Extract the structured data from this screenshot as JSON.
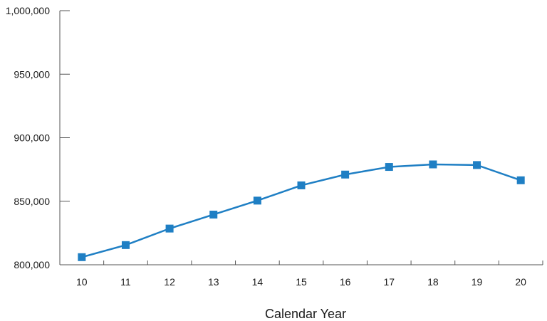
{
  "chart_data": {
    "type": "line",
    "title": "",
    "xlabel": "Calendar Year",
    "ylabel": "",
    "categories": [
      "10",
      "11",
      "12",
      "13",
      "14",
      "15",
      "16",
      "17",
      "18",
      "19",
      "20"
    ],
    "y_ticks": [
      "800,000",
      "850,000",
      "900,000",
      "950,000",
      "1,000,000"
    ],
    "ylim": [
      800000,
      1000000
    ],
    "grid": false,
    "legend": "none",
    "series": [
      {
        "color": "#1f7fc4",
        "marker": "square",
        "values": [
          806000,
          815500,
          828500,
          839500,
          850500,
          862500,
          871000,
          877000,
          879000,
          878500,
          866500
        ]
      }
    ]
  }
}
